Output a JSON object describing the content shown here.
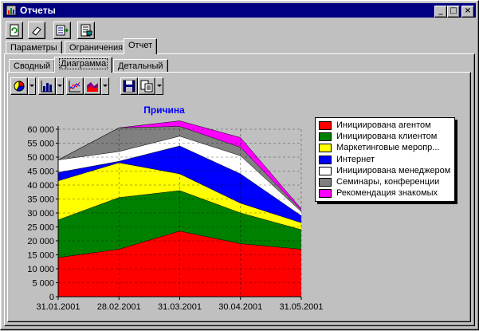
{
  "window": {
    "title": "Отчеты"
  },
  "title_controls": [
    "_",
    "□",
    "×"
  ],
  "toolbar": {
    "buttons": [
      "refresh-icon",
      "eraser-icon",
      "export-icon",
      "report-icon"
    ]
  },
  "main_tabs": [
    {
      "label": "Параметры",
      "active": false
    },
    {
      "label": "Ограничения",
      "active": false
    },
    {
      "label": "Отчет",
      "active": true
    }
  ],
  "sub_tabs": [
    {
      "label": "Сводный",
      "active": false
    },
    {
      "label": "Диаграмма",
      "active": true
    },
    {
      "label": "Детальный",
      "active": false
    }
  ],
  "chart_toolbar": {
    "buttons": [
      "pie-chart-icon",
      "bar-chart-icon",
      "line-chart-icon",
      "area-chart-icon",
      "save-icon",
      "copy-icon"
    ]
  },
  "chart_data": {
    "type": "area",
    "stacked": true,
    "title": "Причина",
    "title_color": "#0000ff",
    "x": [
      "31.01.2001",
      "28.02.2001",
      "31.03.2001",
      "30.04.2001",
      "31.05.2001"
    ],
    "ylim": [
      0,
      60000
    ],
    "y_ticks": [
      "0",
      "5 000",
      "10 000",
      "15 000",
      "20 000",
      "25 000",
      "30 000",
      "35 000",
      "40 000",
      "45 000",
      "50 000",
      "55 000",
      "60 000"
    ],
    "grid": true,
    "legend_position": "right",
    "series": [
      {
        "name": "Инициирована агентом",
        "color": "#ff0000",
        "values": [
          14000,
          17000,
          23500,
          19000,
          17000
        ]
      },
      {
        "name": "Инициирована клиентом",
        "color": "#008000",
        "values": [
          13500,
          18500,
          14500,
          11000,
          7000
        ]
      },
      {
        "name": "Маркетинговые меропр...",
        "color": "#ffff00",
        "values": [
          14000,
          12500,
          6000,
          3500,
          2500
        ]
      },
      {
        "name": "Интернет",
        "color": "#0000ff",
        "values": [
          3000,
          500,
          10000,
          10500,
          2500
        ]
      },
      {
        "name": "Инициирована менеджером",
        "color": "#ffffff",
        "values": [
          4500,
          3500,
          3500,
          6500,
          1500
        ]
      },
      {
        "name": "Семинары, конференции",
        "color": "#808080",
        "values": [
          0,
          8500,
          3500,
          3000,
          500
        ]
      },
      {
        "name": "Рекомендация знакомых",
        "color": "#ff00ff",
        "values": [
          0,
          0,
          2000,
          3500,
          500
        ]
      }
    ]
  }
}
